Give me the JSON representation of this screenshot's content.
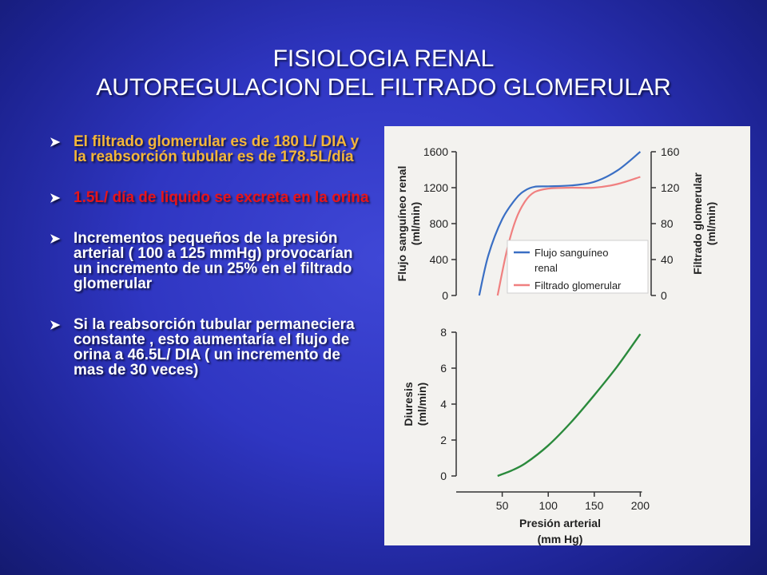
{
  "slide": {
    "title_line1": "FISIOLOGIA RENAL",
    "title_line2": "AUTOREGULACION DEL FILTRADO GLOMERULAR",
    "bullets": [
      {
        "text": "El filtrado glomerular es de 180 L/ DIA y la reabsorción tubular es de 178.5L/día",
        "color": "#f4b63a"
      },
      {
        "text": "1.5L/ día de liquido se excreta en la orina",
        "color": "#e8141a"
      },
      {
        "text": "Incrementos pequeños de la presión arterial ( 100 a 125 mmHg) provocarían un incremento de un 25% en el filtrado glomerular",
        "color": "#ffffff"
      },
      {
        "text": "Si la reabsorción tubular permaneciera constante , esto aumentaría el flujo de orina a 46.5L/ DIA ( un incremento de mas de 30 veces)",
        "color": "#ffffff"
      }
    ]
  },
  "colors": {
    "flujo": "#3a6fc4",
    "filtrado": "#f08080",
    "diuresis": "#2a8a3c",
    "axis": "#333333"
  },
  "chart_data": [
    {
      "type": "line",
      "ylabel": "Flujo sanguíneo renal (ml/min)",
      "ylabel_line1": "Flujo sanguíneo renal",
      "ylabel_line2": "(ml/min)",
      "y2label_line1": "Filtrado glomerular",
      "y2label_line2": "(ml/min)",
      "ylim": [
        0,
        1600
      ],
      "y2lim": [
        0,
        160
      ],
      "xlim": [
        0,
        200
      ],
      "y_ticks": [
        0,
        400,
        800,
        1200,
        1600
      ],
      "y2_ticks": [
        0,
        40,
        80,
        120,
        160
      ],
      "legend": [
        "Flujo sanguíneo",
        "renal",
        "Filtrado glomerular"
      ],
      "legend_position": "bottom-right",
      "series": [
        {
          "name": "Flujo sanguíneo renal",
          "axis": "left",
          "x": [
            25,
            35,
            50,
            65,
            75,
            85,
            100,
            125,
            150,
            175,
            200
          ],
          "y": [
            0,
            450,
            850,
            1080,
            1170,
            1210,
            1215,
            1225,
            1265,
            1390,
            1600
          ]
        },
        {
          "name": "Filtrado glomerular",
          "axis": "right",
          "x": [
            45,
            55,
            65,
            75,
            85,
            100,
            125,
            150,
            175,
            200
          ],
          "y": [
            0,
            50,
            85,
            105,
            115,
            119,
            120,
            120,
            124,
            132
          ]
        }
      ]
    },
    {
      "type": "line",
      "xlabel_line1": "Presión arterial",
      "xlabel_line2": "(mm Hg)",
      "ylabel_line1": "Diuresis",
      "ylabel_line2": "(ml/min)",
      "xlim": [
        0,
        200
      ],
      "ylim": [
        0,
        8
      ],
      "x_ticks": [
        50,
        100,
        150,
        200
      ],
      "y_ticks": [
        0,
        2,
        4,
        6,
        8
      ],
      "series": [
        {
          "name": "Diuresis",
          "x": [
            45,
            50,
            60,
            75,
            100,
            125,
            150,
            175,
            200
          ],
          "y": [
            0,
            0.1,
            0.3,
            0.7,
            1.7,
            3.0,
            4.5,
            6.1,
            7.9
          ]
        }
      ]
    }
  ]
}
